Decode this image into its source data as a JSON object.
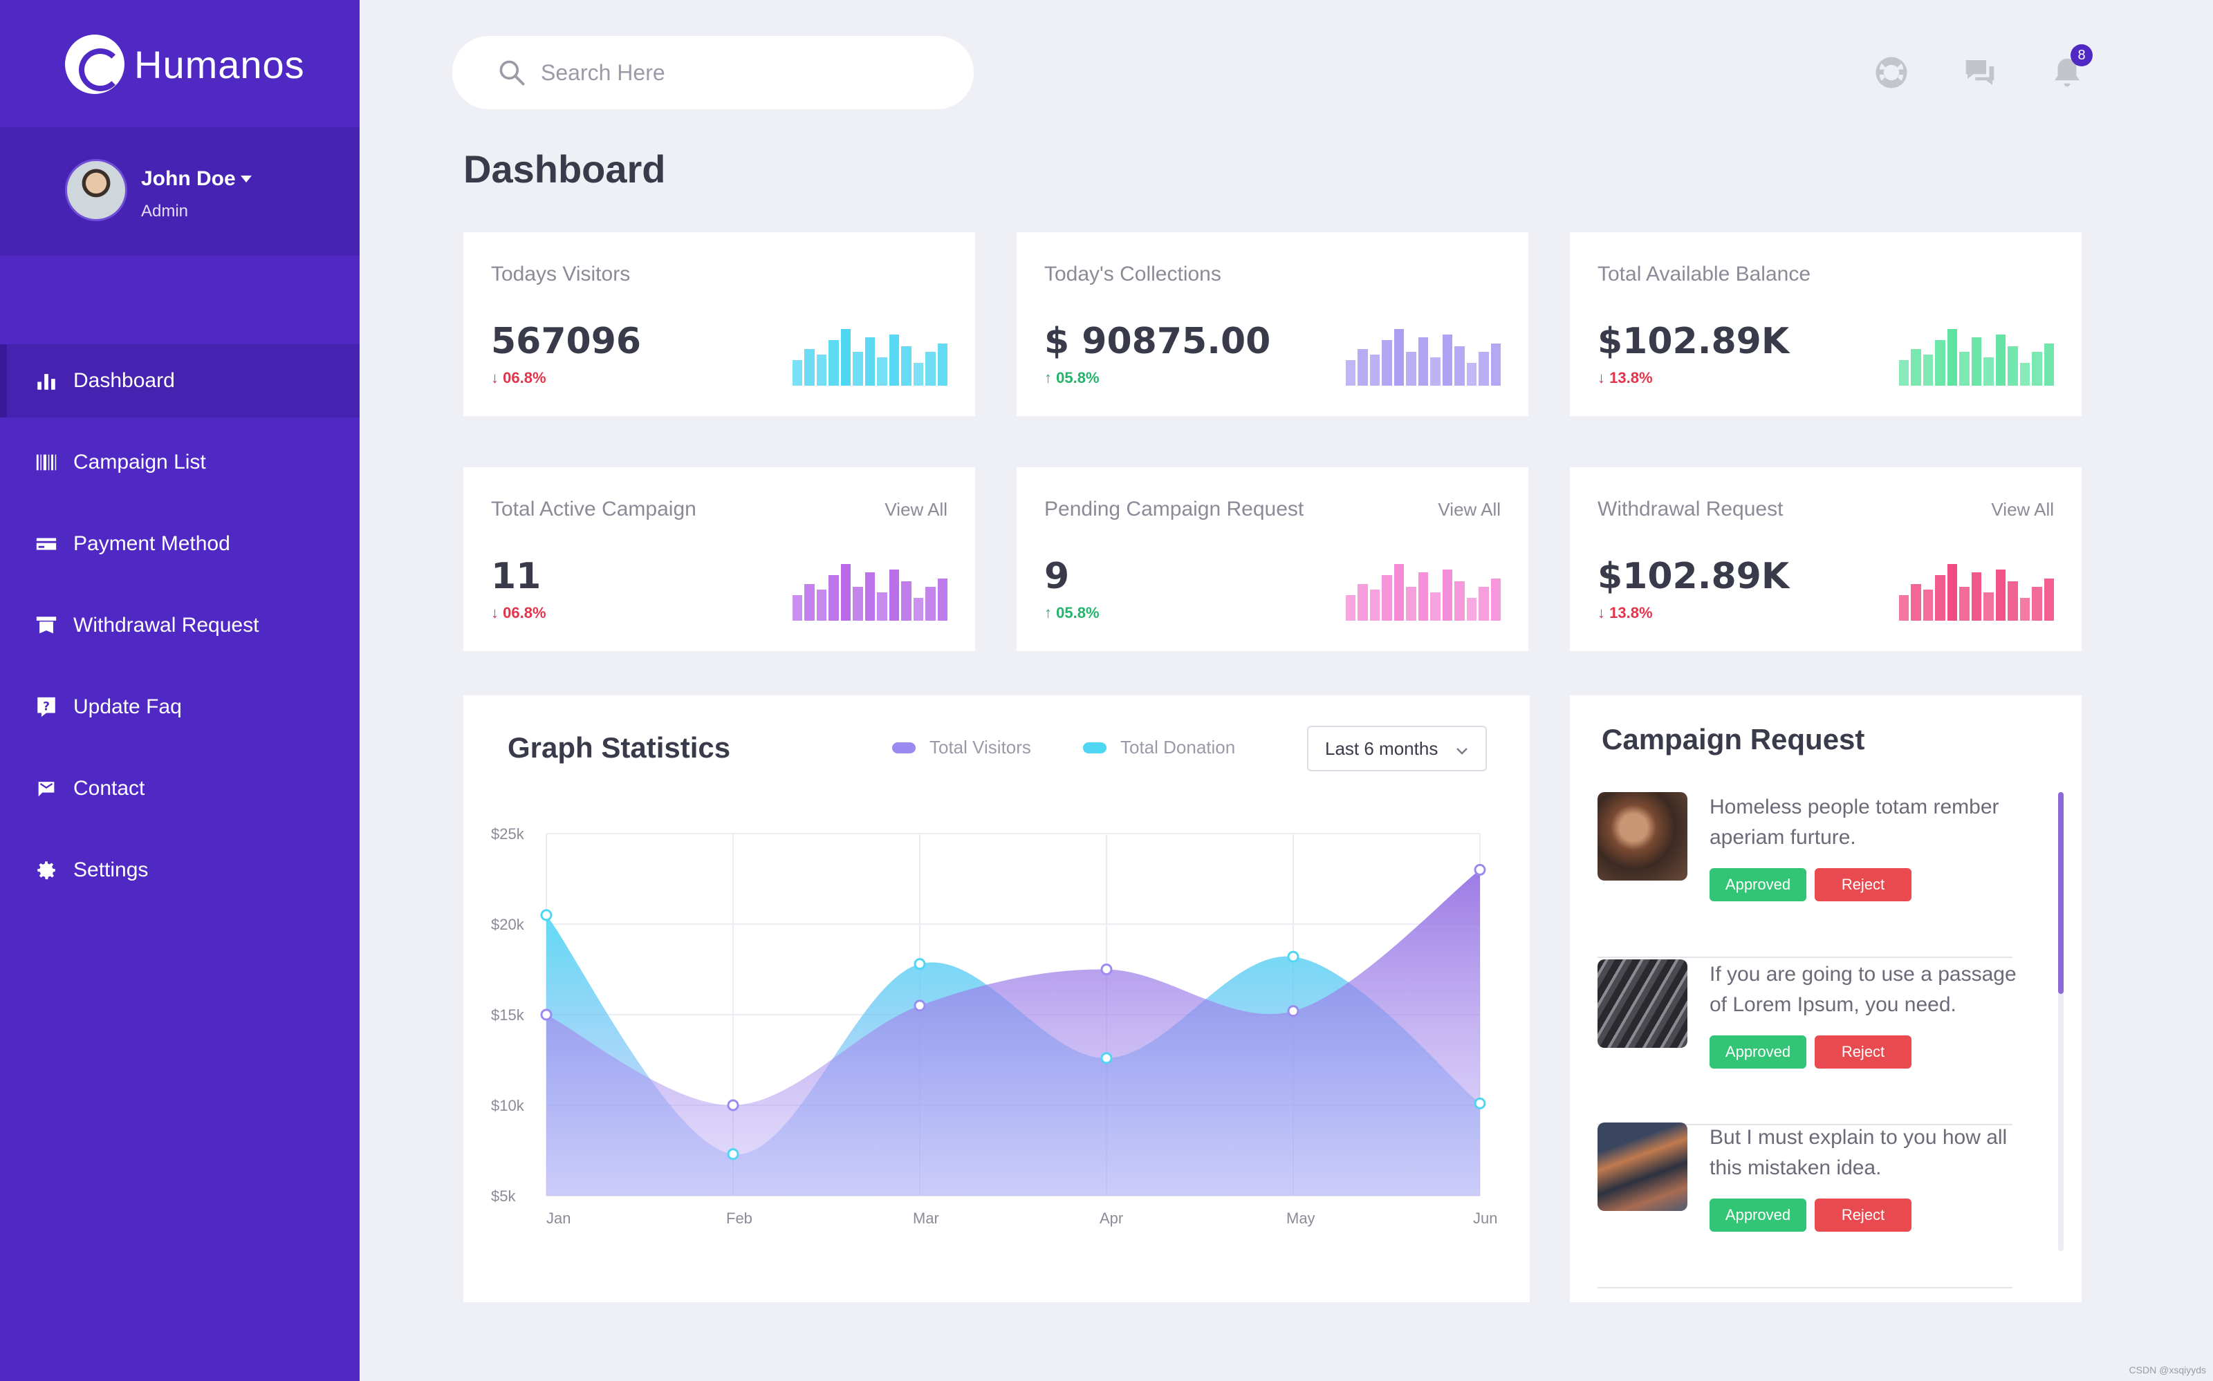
{
  "brand": {
    "name": "Humanos"
  },
  "profile": {
    "name": "John Doe",
    "role": "Admin"
  },
  "nav": [
    {
      "label": "Dashboard",
      "icon": "bar-chart-icon",
      "active": true
    },
    {
      "label": "Campaign List",
      "icon": "barcode-icon",
      "active": false
    },
    {
      "label": "Payment Method",
      "icon": "credit-card-icon",
      "active": false
    },
    {
      "label": "Withdrawal Request",
      "icon": "withdrawal-icon",
      "active": false
    },
    {
      "label": "Update Faq",
      "icon": "question-icon",
      "active": false
    },
    {
      "label": "Contact",
      "icon": "contact-icon",
      "active": false
    },
    {
      "label": "Settings",
      "icon": "gear-icon",
      "active": false
    }
  ],
  "search": {
    "placeholder": "Search Here"
  },
  "topbar": {
    "notification_count": "8"
  },
  "page": {
    "title": "Dashboard"
  },
  "colors": {
    "sidebar": "#5029c4",
    "cyan": "#4fd6f2",
    "lavender": "#ab9df2",
    "green": "#5fe3a1",
    "purple": "#b769e8",
    "pink": "#f589d6",
    "rose": "#f04b82",
    "approved": "#32c575",
    "reject": "#e84a4f"
  },
  "stats": [
    {
      "title": "Todays Visitors",
      "value": "567096",
      "change": "06.8%",
      "direction": "down",
      "link": ""
    },
    {
      "title": "Today's Collections",
      "value": "$ 90875.00",
      "change": "05.8%",
      "direction": "up",
      "link": ""
    },
    {
      "title": "Total Available Balance",
      "value": "$102.89K",
      "change": "13.8%",
      "direction": "down",
      "link": ""
    },
    {
      "title": "Total Active Campaign",
      "value": "11",
      "change": "06.8%",
      "direction": "down",
      "link": "View All"
    },
    {
      "title": "Pending Campaign Request",
      "value": "9",
      "change": "05.8%",
      "direction": "up",
      "link": "View All"
    },
    {
      "title": "Withdrawal Request",
      "value": "$102.89K",
      "change": "13.8%",
      "direction": "down",
      "link": "View All"
    }
  ],
  "graph": {
    "title": "Graph Statistics",
    "legend": [
      "Total Visitors",
      "Total Donation"
    ],
    "range": "Last 6 months"
  },
  "chart_data": {
    "type": "area",
    "x": [
      "Jan",
      "Feb",
      "Mar",
      "Apr",
      "May",
      "Jun"
    ],
    "y_ticks": [
      "$25k",
      "$20k",
      "$15k",
      "$10k",
      "$5k"
    ],
    "ylim": [
      5000,
      25000
    ],
    "series": [
      {
        "name": "Total Visitors",
        "values": [
          15000,
          10000,
          15500,
          17500,
          15200,
          23000
        ]
      },
      {
        "name": "Total Donation",
        "values": [
          20500,
          7300,
          17800,
          12600,
          18200,
          10100
        ]
      }
    ],
    "grid": true
  },
  "requests": {
    "title": "Campaign Request",
    "approve_label": "Approved",
    "reject_label": "Reject",
    "items": [
      {
        "text": "Homeless people totam rember aperiam furture."
      },
      {
        "text": "If you are going to use a passage of Lorem Ipsum, you need."
      },
      {
        "text": "But I must explain to you how all this mistaken idea."
      }
    ]
  },
  "watermark": "CSDN @xsqiyyds"
}
